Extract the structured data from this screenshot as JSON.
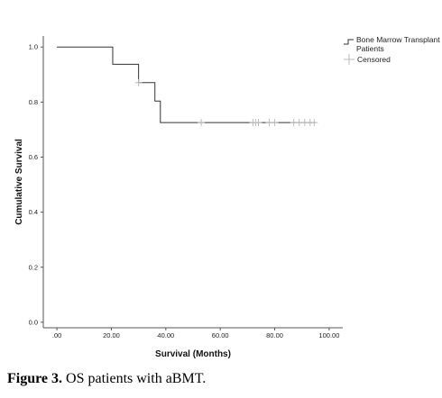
{
  "chart_data": {
    "type": "line",
    "title": "",
    "xlabel": "Survival (Months)",
    "ylabel": "Cumulative Survival",
    "xlim": [
      -5,
      105
    ],
    "ylim": [
      -0.02,
      1.04
    ],
    "x_ticks": [
      0,
      20,
      40,
      60,
      80,
      100
    ],
    "x_tick_labels": [
      ".00",
      "20.00",
      "40.00",
      "60.00",
      "80.00",
      "100.00"
    ],
    "y_ticks": [
      0,
      0.2,
      0.4,
      0.6,
      0.8,
      1.0
    ],
    "y_tick_labels": [
      "0.0",
      "0.2",
      "0.4",
      "0.6",
      "0.8",
      "1.0"
    ],
    "grid": false,
    "legend_position": "top-right",
    "series": [
      {
        "name": "Bone Marrow Transplant Patients",
        "color": "#333333",
        "style": "step",
        "x": [
          0,
          20.5,
          30,
          36,
          38,
          95
        ],
        "y": [
          1.0,
          0.9375,
          0.8705,
          0.8035,
          0.7255,
          0.7255
        ]
      }
    ],
    "censored": {
      "name": "Censored",
      "color": "#bbbbbb",
      "points": [
        {
          "x": 30,
          "y": 0.8705
        },
        {
          "x": 53,
          "y": 0.7255
        },
        {
          "x": 72,
          "y": 0.7255
        },
        {
          "x": 73,
          "y": 0.7255
        },
        {
          "x": 74,
          "y": 0.7255
        },
        {
          "x": 78,
          "y": 0.7255
        },
        {
          "x": 80,
          "y": 0.7255
        },
        {
          "x": 87,
          "y": 0.7255
        },
        {
          "x": 89,
          "y": 0.7255
        },
        {
          "x": 91,
          "y": 0.7255
        },
        {
          "x": 93,
          "y": 0.7255
        },
        {
          "x": 94.5,
          "y": 0.7255
        }
      ]
    }
  },
  "legend": {
    "series_label_line1": "Bone Marrow Transplant",
    "series_label_line2": "Patients",
    "censored_label": "Censored"
  },
  "caption": {
    "label": "Figure 3.",
    "text": " OS patients with aBMT."
  }
}
